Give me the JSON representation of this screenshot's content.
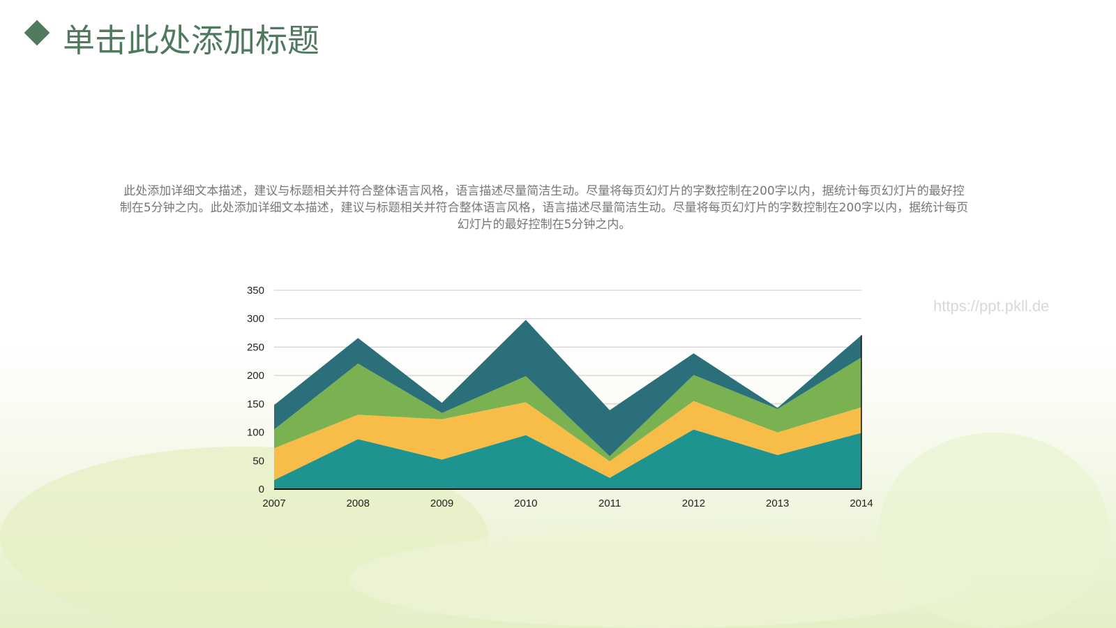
{
  "header": {
    "title": "单击此处添加标题"
  },
  "body": {
    "description": "此处添加详细文本描述，建议与标题相关并符合整体语言风格，语言描述尽量简洁生动。尽量将每页幻灯片的字数控制在200字以内，据统计每页幻灯片的最好控制在5分钟之内。此处添加详细文本描述，建议与标题相关并符合整体语言风格，语言描述尽量简洁生动。尽量将每页幻灯片的字数控制在200字以内，据统计每页幻灯片的最好控制在5分钟之内。"
  },
  "watermark": "https://ppt.pkll.de",
  "colors": {
    "title": "#4f7a5e"
  },
  "chart_data": {
    "type": "area",
    "stacked": true,
    "categories": [
      "2007",
      "2008",
      "2009",
      "2010",
      "2011",
      "2012",
      "2013",
      "2014"
    ],
    "series": [
      {
        "values": [
          16,
          88,
          52,
          95,
          20,
          105,
          60,
          99
        ],
        "color": "#1e9490"
      },
      {
        "values": [
          56,
          43,
          71,
          58,
          29,
          50,
          40,
          45
        ],
        "color": "#f8bd48"
      },
      {
        "values": [
          33,
          90,
          11,
          46,
          9,
          46,
          41,
          88
        ],
        "color": "#7ab251"
      },
      {
        "values": [
          43,
          45,
          18,
          99,
          81,
          38,
          2,
          39
        ],
        "color": "#2a6f7a"
      }
    ],
    "yticks": [
      0,
      50,
      100,
      150,
      200,
      250,
      300,
      350
    ],
    "ylim": [
      0,
      350
    ],
    "grid": true,
    "legend": "none"
  }
}
